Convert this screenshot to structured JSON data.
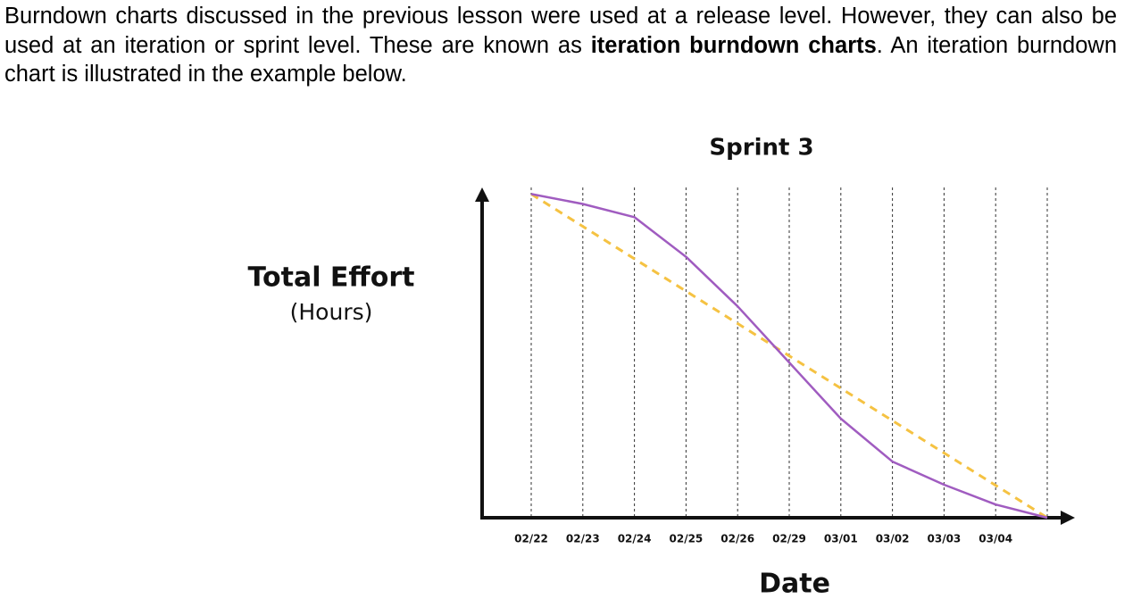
{
  "paragraph": {
    "before": "Burndown charts discussed in the previous lesson were used at a release level. However, they can also be used at an iteration or sprint level. These are known as ",
    "bold": "iteration burndown charts",
    "after": ". An iteration burndown chart is illustrated in the example below."
  },
  "chart_data": {
    "type": "line",
    "title": "Sprint 3",
    "y_label": "Total Effort",
    "y_unit": "(Hours)",
    "x_label": "Date",
    "categories": [
      "02/22",
      "02/23",
      "02/24",
      "02/25",
      "02/26",
      "02/29",
      "03/01",
      "03/02",
      "03/03",
      "03/04",
      null
    ],
    "ylim": [
      0,
      100
    ],
    "grid": true,
    "series": [
      {
        "color": "#f5c242",
        "dashed": true,
        "values": [
          98,
          88.2,
          78.4,
          68.6,
          58.8,
          49,
          39.2,
          29.4,
          19.6,
          9.8,
          0
        ]
      },
      {
        "color": "#a05cc0",
        "dashed": false,
        "values": [
          98,
          95,
          91,
          79,
          64,
          47,
          30,
          17,
          10,
          4,
          0
        ]
      }
    ]
  }
}
